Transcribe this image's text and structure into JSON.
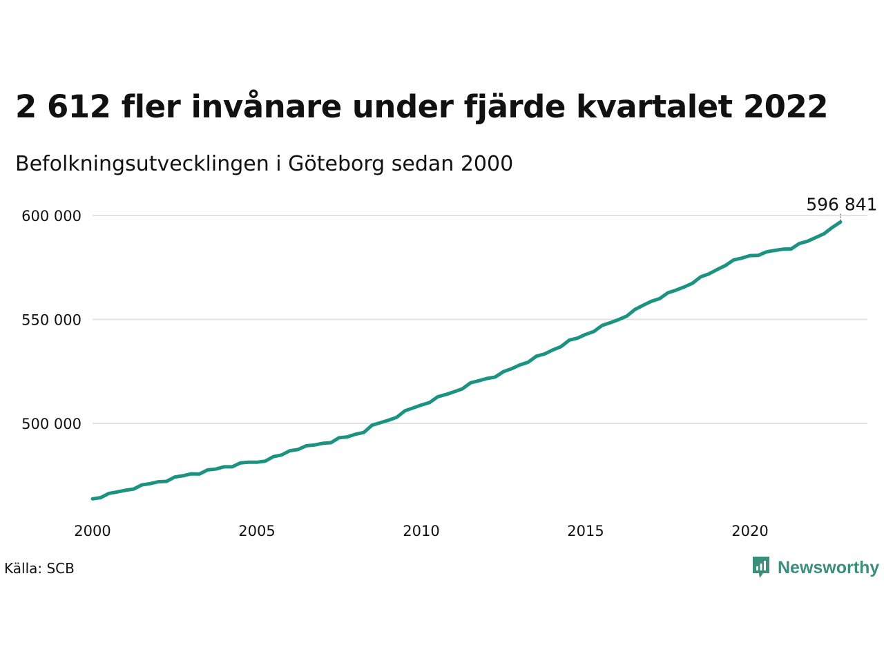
{
  "title": "2 612 fler invånare under fjärde kvartalet 2022",
  "subtitle": "Befolkningsutvecklingen i Göteborg sedan 2000",
  "source": "Källa: SCB",
  "brand": "Newsworthy",
  "colors": {
    "line": "#1a9480",
    "grid": "#e2e2e2",
    "brand": "#3a8f7c"
  },
  "chart_data": {
    "type": "line",
    "title": "2 612 fler invånare under fjärde kvartalet 2022",
    "subtitle": "Befolkningsutvecklingen i Göteborg sedan 2000",
    "xlabel": "",
    "ylabel": "",
    "xlim": [
      2000,
      2024
    ],
    "ylim": [
      459000,
      605000
    ],
    "grid": true,
    "x_ticks": [
      {
        "value": 2000,
        "label": "2000"
      },
      {
        "value": 2005,
        "label": "2005"
      },
      {
        "value": 2010,
        "label": "2010"
      },
      {
        "value": 2015,
        "label": "2015"
      },
      {
        "value": 2020,
        "label": "2020"
      }
    ],
    "y_ticks": [
      {
        "value": 500000,
        "label": "500 000"
      },
      {
        "value": 550000,
        "label": "550 000"
      },
      {
        "value": 600000,
        "label": "600 000"
      }
    ],
    "end_label": "596 841",
    "series": [
      {
        "values": [
          [
            2000.0,
            463700
          ],
          [
            2000.25,
            464300
          ],
          [
            2000.5,
            466300
          ],
          [
            2000.75,
            467000
          ],
          [
            2001.0,
            467800
          ],
          [
            2001.25,
            468400
          ],
          [
            2001.5,
            470400
          ],
          [
            2001.75,
            471000
          ],
          [
            2002.0,
            471900
          ],
          [
            2002.25,
            472100
          ],
          [
            2002.5,
            474200
          ],
          [
            2002.75,
            474800
          ],
          [
            2003.0,
            475700
          ],
          [
            2003.25,
            475600
          ],
          [
            2003.5,
            477600
          ],
          [
            2003.75,
            478000
          ],
          [
            2004.0,
            479100
          ],
          [
            2004.25,
            479100
          ],
          [
            2004.5,
            481000
          ],
          [
            2004.75,
            481300
          ],
          [
            2005.0,
            481300
          ],
          [
            2005.25,
            481800
          ],
          [
            2005.5,
            484000
          ],
          [
            2005.75,
            484800
          ],
          [
            2006.0,
            486800
          ],
          [
            2006.25,
            487400
          ],
          [
            2006.5,
            489200
          ],
          [
            2006.75,
            489600
          ],
          [
            2007.0,
            490400
          ],
          [
            2007.25,
            490700
          ],
          [
            2007.5,
            493100
          ],
          [
            2007.75,
            493500
          ],
          [
            2008.0,
            494800
          ],
          [
            2008.25,
            495600
          ],
          [
            2008.5,
            499100
          ],
          [
            2008.75,
            500300
          ],
          [
            2009.0,
            501500
          ],
          [
            2009.25,
            502900
          ],
          [
            2009.5,
            506000
          ],
          [
            2009.75,
            507400
          ],
          [
            2010.0,
            508800
          ],
          [
            2010.25,
            510000
          ],
          [
            2010.5,
            512800
          ],
          [
            2010.75,
            513900
          ],
          [
            2011.0,
            515200
          ],
          [
            2011.25,
            516600
          ],
          [
            2011.5,
            519500
          ],
          [
            2011.75,
            520500
          ],
          [
            2012.0,
            521600
          ],
          [
            2012.25,
            522300
          ],
          [
            2012.5,
            524900
          ],
          [
            2012.75,
            526300
          ],
          [
            2013.0,
            528100
          ],
          [
            2013.25,
            529400
          ],
          [
            2013.5,
            532300
          ],
          [
            2013.75,
            533400
          ],
          [
            2014.0,
            535300
          ],
          [
            2014.25,
            536900
          ],
          [
            2014.5,
            540000
          ],
          [
            2014.75,
            541000
          ],
          [
            2015.0,
            542800
          ],
          [
            2015.25,
            544200
          ],
          [
            2015.5,
            547100
          ],
          [
            2015.75,
            548400
          ],
          [
            2016.0,
            549900
          ],
          [
            2016.25,
            551600
          ],
          [
            2016.5,
            554800
          ],
          [
            2016.75,
            556800
          ],
          [
            2017.0,
            558700
          ],
          [
            2017.25,
            560000
          ],
          [
            2017.5,
            562800
          ],
          [
            2017.75,
            564100
          ],
          [
            2018.0,
            565600
          ],
          [
            2018.25,
            567400
          ],
          [
            2018.5,
            570500
          ],
          [
            2018.75,
            571900
          ],
          [
            2019.0,
            574000
          ],
          [
            2019.25,
            575900
          ],
          [
            2019.5,
            578600
          ],
          [
            2019.75,
            579500
          ],
          [
            2020.0,
            580700
          ],
          [
            2020.25,
            580800
          ],
          [
            2020.5,
            582500
          ],
          [
            2020.75,
            583200
          ],
          [
            2021.0,
            583800
          ],
          [
            2021.25,
            583900
          ],
          [
            2021.5,
            586500
          ],
          [
            2021.75,
            587600
          ],
          [
            2022.0,
            589400
          ],
          [
            2022.25,
            591200
          ],
          [
            2022.5,
            594229
          ],
          [
            2022.75,
            596841
          ]
        ]
      }
    ]
  }
}
